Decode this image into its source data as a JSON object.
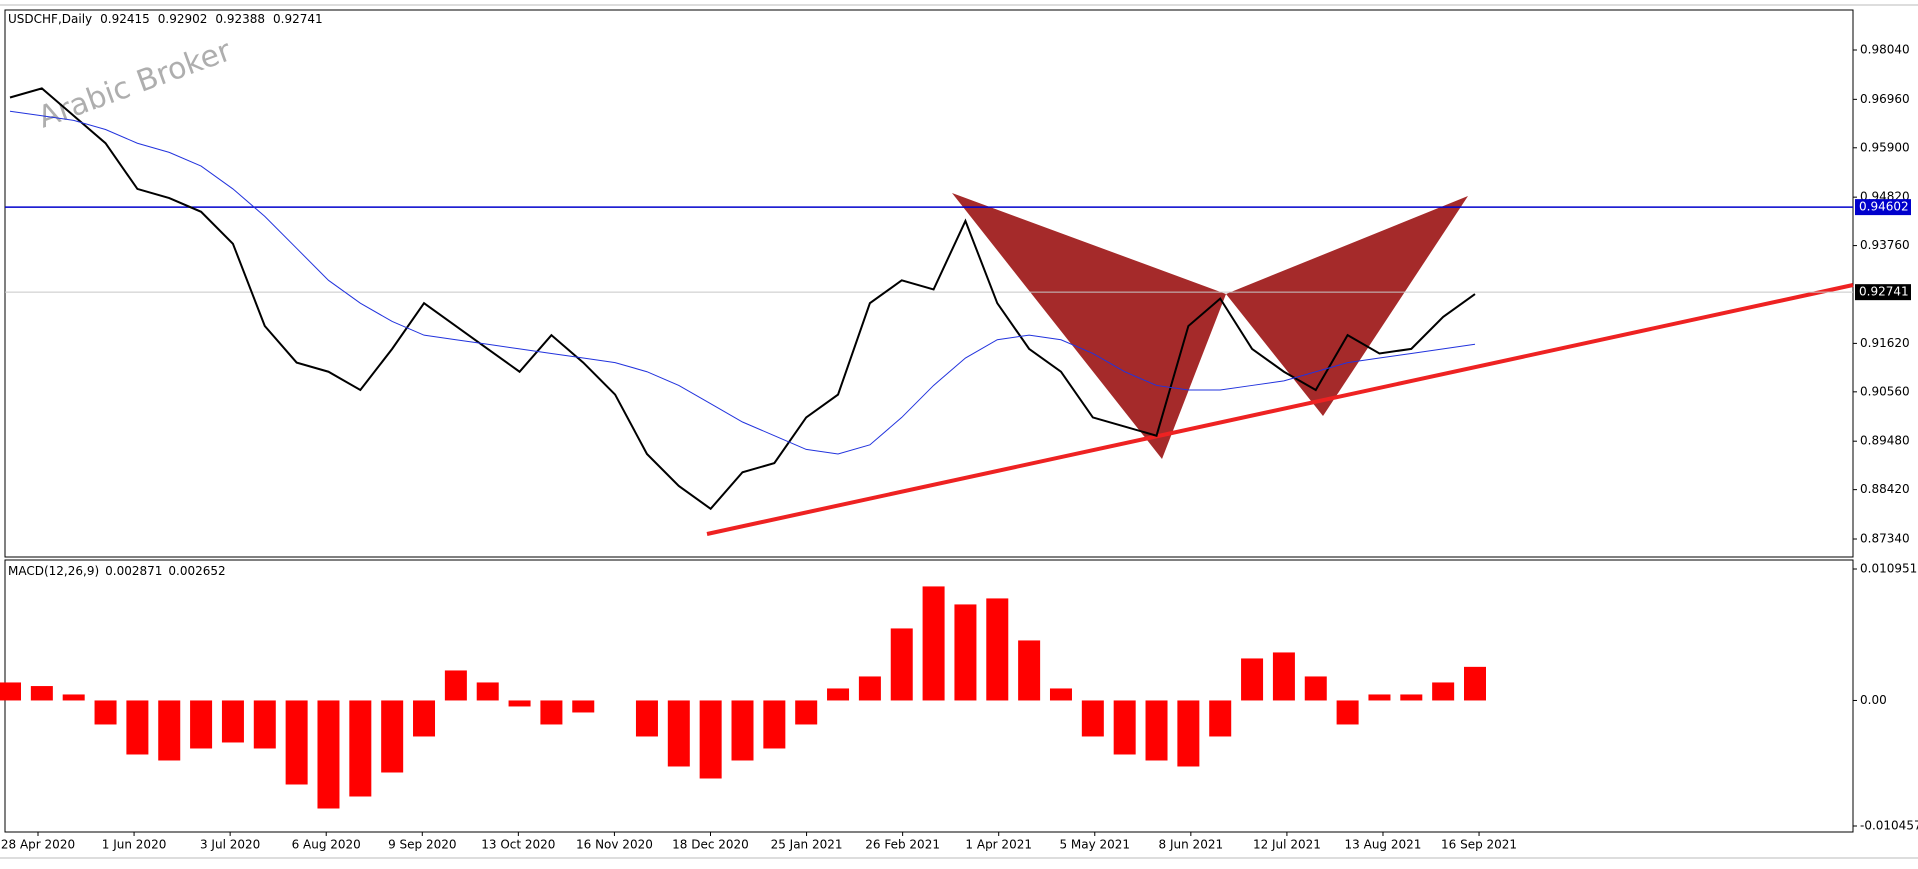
{
  "chart_data": [
    {
      "type": "line",
      "title": "USDCHF,Daily",
      "ohlc": [
        0.92415,
        0.92902,
        0.92388,
        0.92741
      ],
      "watermark": "Arabic Broker",
      "date_labels": [
        "28 Apr 2020",
        "1 Jun 2020",
        "3 Jul 2020",
        "6 Aug 2020",
        "9 Sep 2020",
        "13 Oct 2020",
        "16 Nov 2020",
        "18 Dec 2020",
        "25 Jan 2021",
        "26 Feb 2021",
        "1 Apr 2021",
        "5 May 2021",
        "8 Jun 2021",
        "12 Jul 2021",
        "13 Aug 2021",
        "16 Sep 2021"
      ],
      "series": [
        {
          "name": "close",
          "color": "#000000",
          "values": [
            0.97,
            0.972,
            0.966,
            0.96,
            0.95,
            0.948,
            0.945,
            0.938,
            0.92,
            0.912,
            0.91,
            0.906,
            0.915,
            0.925,
            0.92,
            0.915,
            0.91,
            0.918,
            0.912,
            0.905,
            0.892,
            0.885,
            0.88,
            0.888,
            0.89,
            0.9,
            0.905,
            0.925,
            0.93,
            0.928,
            0.943,
            0.925,
            0.915,
            0.91,
            0.9,
            0.898,
            0.896,
            0.92,
            0.926,
            0.915,
            0.91,
            0.906,
            0.918,
            0.914,
            0.915,
            0.922,
            0.927
          ]
        },
        {
          "name": "MA",
          "color": "#2233dd",
          "values": [
            0.967,
            0.966,
            0.965,
            0.963,
            0.96,
            0.958,
            0.955,
            0.95,
            0.944,
            0.937,
            0.93,
            0.925,
            0.921,
            0.918,
            0.917,
            0.916,
            0.915,
            0.914,
            0.913,
            0.912,
            0.91,
            0.907,
            0.903,
            0.899,
            0.896,
            0.893,
            0.892,
            0.894,
            0.9,
            0.907,
            0.913,
            0.917,
            0.918,
            0.917,
            0.914,
            0.91,
            0.907,
            0.906,
            0.906,
            0.907,
            0.908,
            0.91,
            0.912,
            0.913,
            0.914,
            0.915,
            0.916
          ]
        }
      ],
      "ylim": [
        0.86946,
        0.98915
      ],
      "yticks": [
        {
          "value": 0.9804,
          "label": "0.98040"
        },
        {
          "value": 0.9696,
          "label": "0.96960"
        },
        {
          "value": 0.959,
          "label": "0.95900"
        },
        {
          "value": 0.9482,
          "label": "0.94820"
        },
        {
          "value": 0.9376,
          "label": "0.93760"
        },
        {
          "value": 0.9162,
          "label": "0.91620"
        },
        {
          "value": 0.9056,
          "label": "0.90560"
        },
        {
          "value": 0.8948,
          "label": "0.89480"
        },
        {
          "value": 0.8842,
          "label": "0.88420"
        },
        {
          "value": 0.8734,
          "label": "0.87340"
        }
      ],
      "price_lines": [
        {
          "value": 0.94602,
          "color": "#0000cc"
        },
        {
          "value": 0.92741,
          "color": "#000000"
        }
      ]
    },
    {
      "type": "bar",
      "title": "MACD(12,26,9)",
      "indicator_values": [
        0.002871,
        0.002652
      ],
      "color": "#ff0000",
      "values": [
        0.0015,
        0.0012,
        0.0005,
        -0.002,
        -0.0045,
        -0.005,
        -0.004,
        -0.0035,
        -0.004,
        -0.007,
        -0.009,
        -0.008,
        -0.006,
        -0.003,
        0.0025,
        0.0015,
        -0.0005,
        -0.002,
        -0.001,
        0,
        -0.003,
        -0.0055,
        -0.0065,
        -0.005,
        -0.004,
        -0.002,
        0.001,
        0.002,
        0.006,
        0.0095,
        0.008,
        0.0085,
        0.005,
        0.001,
        -0.003,
        -0.0045,
        -0.005,
        -0.0055,
        -0.003,
        0.0035,
        0.004,
        0.002,
        -0.002,
        0.0005,
        0.0005,
        0.0015,
        0.0028
      ],
      "ylim": [
        -0.010957,
        0.011701
      ],
      "yticks": [
        0.010951,
        {
          "value": 0,
          "label": "0.00"
        },
        -0.010457
      ]
    }
  ]
}
